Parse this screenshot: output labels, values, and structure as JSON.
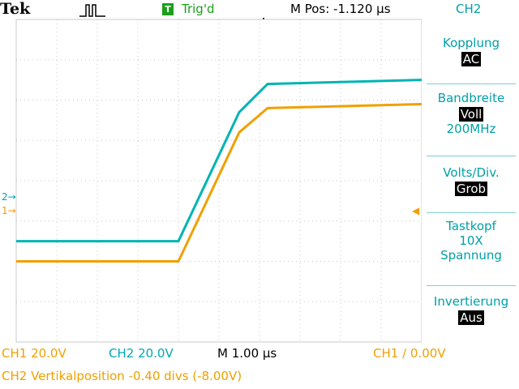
{
  "header": {
    "brand": "Tek",
    "trigger_status_icon": "T",
    "trigger_status": "Trig'd",
    "position": "M Pos: -1.120 µs",
    "channel": "CH2"
  },
  "menu": {
    "coupling_title": "Kopplung",
    "coupling_value": "AC",
    "bandwidth_title": "Bandbreite",
    "bandwidth_value": "Voll",
    "bandwidth_sub": "200MHz",
    "volts_title": "Volts/Div.",
    "volts_value": "Grob",
    "probe_title": "Tastkopf",
    "probe_value": "10X",
    "probe_sub": "Spannung",
    "invert_title": "Invertierung",
    "invert_value": "Aus"
  },
  "markers": {
    "ch2": "2",
    "ch1": "1"
  },
  "footer": {
    "ch1": "CH1  20.0V",
    "ch2": "CH2  20.0V",
    "timebase": "M 1.00 µs",
    "trigger": "CH1 ∕ 0.00V",
    "status": "CH2 Vertikalposition -0.40 divs (-8.00V)"
  },
  "colors": {
    "ch1": "#f0a000",
    "ch2": "#00b4b4",
    "grid": "#c8c8c8",
    "menu": "#00a0a8",
    "trigger_green": "#1aa01a"
  },
  "chart_data": {
    "type": "line",
    "series": [
      {
        "x": [
          -5,
          -1,
          0.5,
          1.2,
          5
        ],
        "y": [
          -2.0,
          -2.0,
          1.2,
          1.8,
          1.9
        ]
      },
      {
        "x": [
          -5,
          -1,
          0.5,
          1.2,
          5
        ],
        "y": [
          -1.5,
          -1.5,
          1.7,
          2.4,
          2.5
        ]
      }
    ],
    "xlim": [
      -5,
      5
    ],
    "ylim": [
      -4,
      4
    ],
    "grid": true
  }
}
